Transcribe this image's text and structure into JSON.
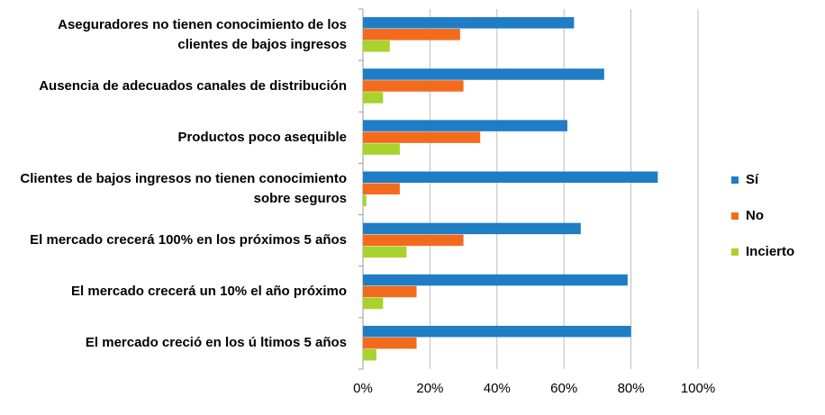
{
  "chart_data": {
    "type": "barh",
    "categories": [
      "Aseguradores no tienen conocimiento de los clientes de bajos ingresos",
      "Ausencia de adecuados canales de distribución",
      "Productos poco asequible",
      "Clientes de bajos ingresos no tienen conocimiento sobre seguros",
      "El mercado crecerá 100% en los próximos 5 años",
      "El mercado crecerá un 10% el año próximo",
      "El mercado creció en los ú ltimos 5 años"
    ],
    "series": [
      {
        "name": "Sí",
        "color": "#1f7dc5",
        "values": [
          63,
          72,
          61,
          88,
          65,
          79,
          80
        ]
      },
      {
        "name": "No",
        "color": "#f26b1d",
        "values": [
          29,
          30,
          35,
          11,
          30,
          16,
          16
        ]
      },
      {
        "name": "Incierto",
        "color": "#a8d22c",
        "values": [
          8,
          6,
          11,
          1,
          13,
          6,
          4
        ]
      }
    ],
    "xlim": [
      0,
      100
    ],
    "xticks": [
      {
        "value": 0,
        "label": "0%"
      },
      {
        "value": 20,
        "label": "20%"
      },
      {
        "value": 40,
        "label": "40%"
      },
      {
        "value": 60,
        "label": "60%"
      },
      {
        "value": 80,
        "label": "80%"
      },
      {
        "value": 100,
        "label": "100%"
      }
    ],
    "grid": true,
    "legend": "right"
  }
}
